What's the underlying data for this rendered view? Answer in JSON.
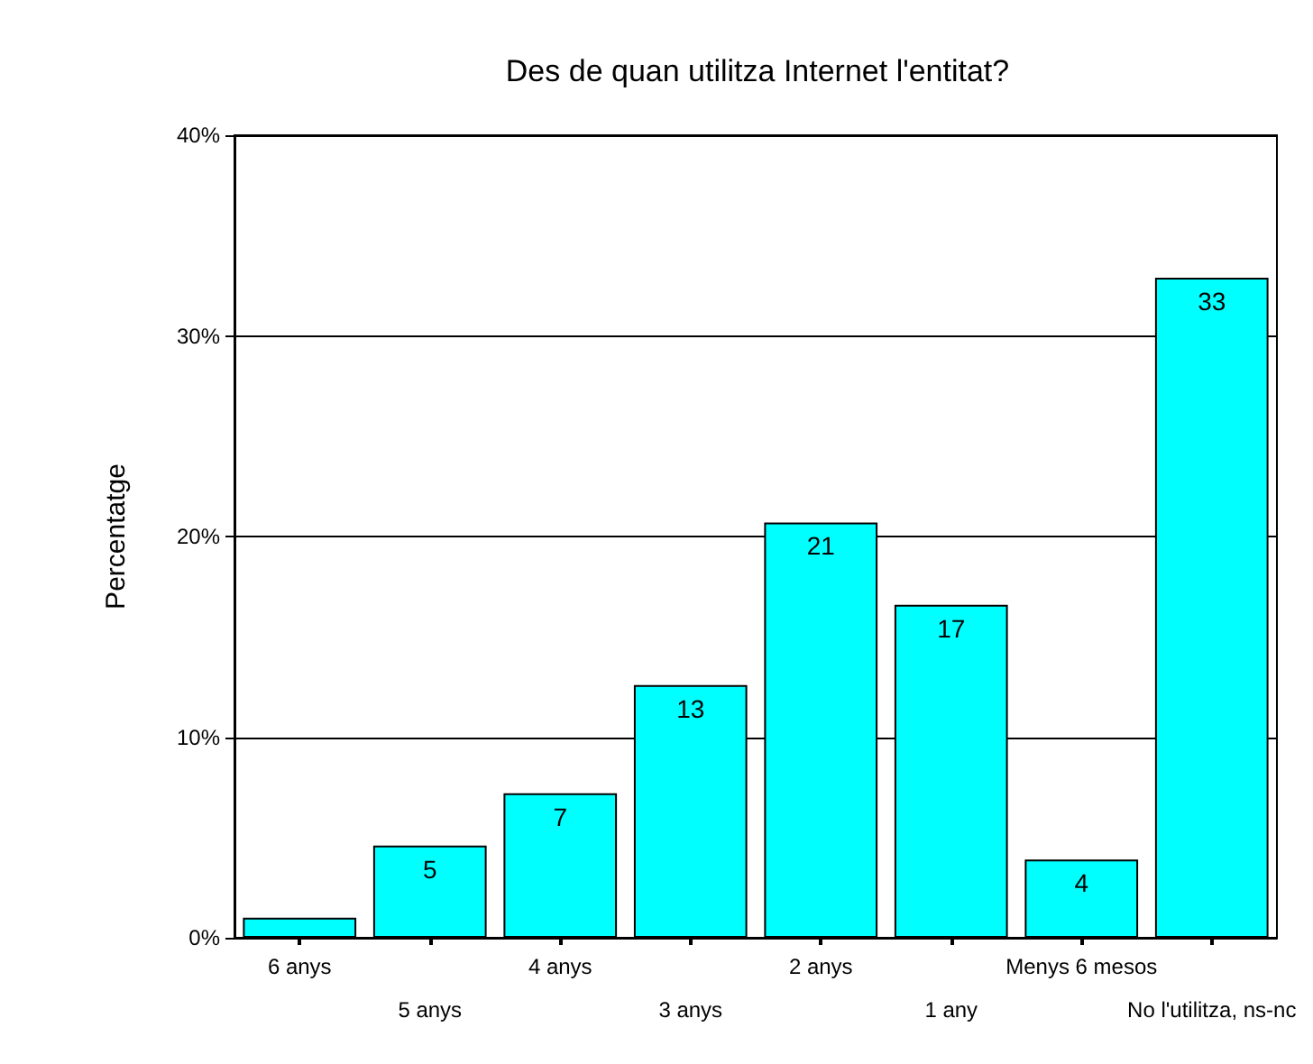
{
  "chart_data": {
    "type": "bar",
    "title": "Des de quan utilitza Internet l'entitat?",
    "ylabel": "Percentatge",
    "categories": [
      "6 anys",
      "5 anys",
      "4 anys",
      "3 anys",
      "2 anys",
      "1 any",
      "Menys 6 mesos",
      "No l'utilitza, ns-nc"
    ],
    "values": [
      1.0,
      4.6,
      7.2,
      12.6,
      20.7,
      16.6,
      3.9,
      32.9
    ],
    "value_labels": [
      null,
      "5",
      "7",
      "13",
      "21",
      "17",
      "4",
      "33"
    ],
    "color": "#00ffff",
    "ylim": [
      0,
      40
    ],
    "yticks": [
      {
        "value": 0,
        "label": "0%"
      },
      {
        "value": 10,
        "label": "10%"
      },
      {
        "value": 20,
        "label": "20%"
      },
      {
        "value": 30,
        "label": "30%"
      },
      {
        "value": 40,
        "label": "40%"
      }
    ],
    "grid": "y"
  }
}
